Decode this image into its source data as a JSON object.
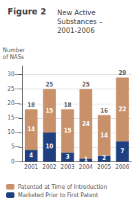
{
  "chart_data": {
    "type": "bar",
    "title": "Figure 2",
    "subtitle": "New Active\nSubstances –\n2001-2006",
    "ylabel": "Number\nof NASs",
    "categories": [
      "2001",
      "2002",
      "2003",
      "2004",
      "2005",
      "2006"
    ],
    "series": [
      {
        "name": "Marketed Prior to First Patent",
        "color": "#1F4080",
        "values": [
          4,
          10,
          3,
          1,
          2,
          7
        ]
      },
      {
        "name": "Patented at Time of Introduction",
        "color": "#C8916A",
        "values": [
          14,
          15,
          15,
          24,
          14,
          22
        ]
      }
    ],
    "totals": [
      18,
      25,
      18,
      25,
      16,
      29
    ],
    "stacked": true,
    "data_labels": true,
    "ylim": [
      0,
      33
    ],
    "yticks": [
      {
        "value": 0,
        "label": "0—"
      },
      {
        "value": 5,
        "label": "5—"
      },
      {
        "value": 10,
        "label": "10—"
      },
      {
        "value": 15,
        "label": "15—"
      },
      {
        "value": 20,
        "label": "20—"
      },
      {
        "value": 25,
        "label": "25—"
      },
      {
        "value": 30,
        "label": "30—"
      }
    ],
    "grid": true,
    "legend": "lower left"
  }
}
